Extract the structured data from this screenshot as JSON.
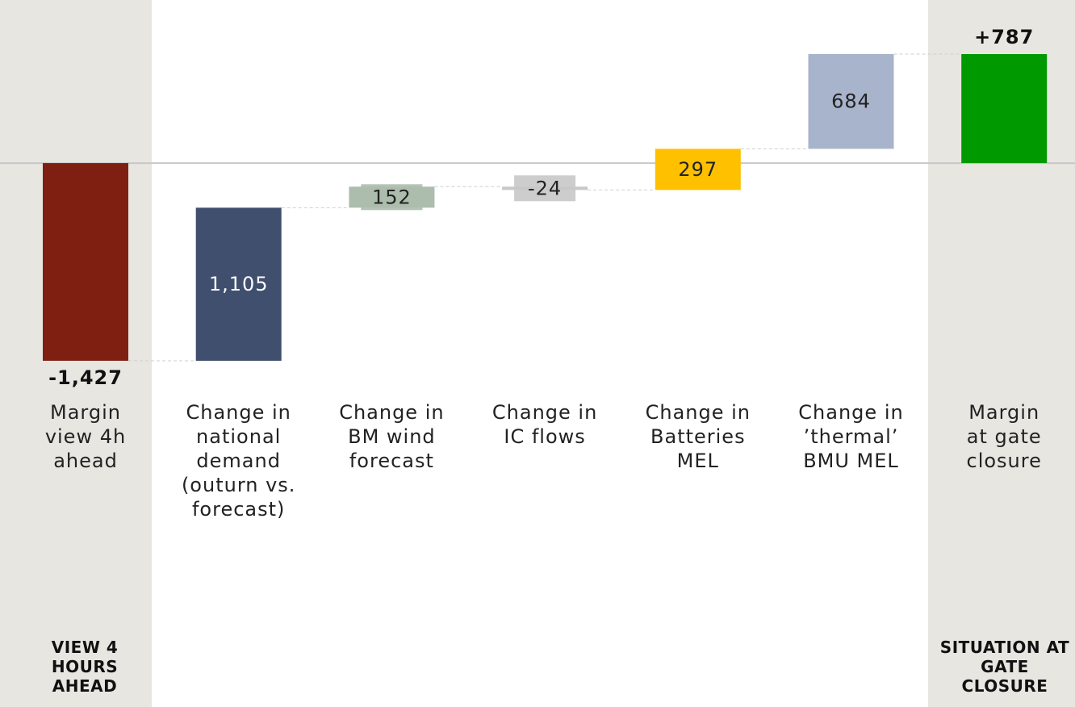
{
  "chart_data": {
    "type": "waterfall",
    "categories": [
      "Margin view 4h ahead",
      "Change in national demand (outurn vs. forecast)",
      "Change in BM wind forecast",
      "Change in IC flows",
      "Change in Batteries MEL",
      "Change in ’thermal’ BMU MEL",
      "Margin at gate closure"
    ],
    "measures": [
      "absolute",
      "relative",
      "relative",
      "relative",
      "relative",
      "relative",
      "total"
    ],
    "values": [
      -1427,
      1105,
      152,
      -24,
      297,
      684,
      787
    ],
    "value_labels": [
      "-1,427",
      "1,105",
      "152",
      "-24",
      "297",
      "684",
      "+787"
    ],
    "colors": [
      "#7f1f12",
      "#404f6d",
      "#adbdad",
      "#c8c8c8",
      "#ffc000",
      "#a8b4cc",
      "#009a00"
    ],
    "panel_labels": [
      "VIEW 4 HOURS AHEAD",
      "SITUATION AT GATE CLOSURE"
    ]
  }
}
